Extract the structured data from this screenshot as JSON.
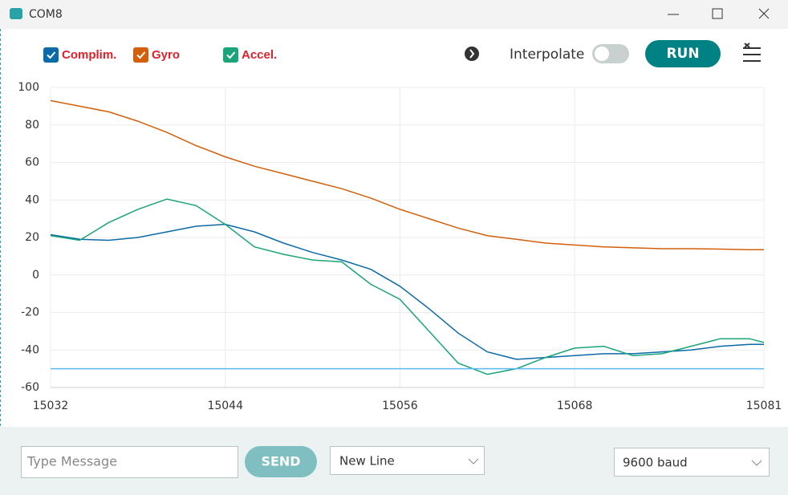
{
  "window": {
    "title": "COM8"
  },
  "controls": {
    "interpolate": "Interpolate",
    "run": "RUN",
    "message_placeholder": "Type Message",
    "send": "SEND",
    "line_ending": "New Line",
    "baud": "9600 baud"
  },
  "chart_data": {
    "type": "line",
    "x": [
      15032,
      15034,
      15036,
      15038,
      15040,
      15042,
      15044,
      15046,
      15048,
      15050,
      15052,
      15054,
      15056,
      15058,
      15060,
      15062,
      15064,
      15066,
      15068,
      15070,
      15072,
      15074,
      15076,
      15078,
      15080,
      15081
    ],
    "series": [
      {
        "name": "Complim.",
        "color": "#0b6aa8",
        "values": [
          21.5,
          19,
          18.5,
          20,
          23,
          26,
          27,
          23,
          17,
          12,
          8,
          3,
          -6,
          -18,
          -31,
          -41,
          -45,
          -44,
          -43,
          -42,
          -42,
          -41,
          -40,
          -38,
          -37,
          -37
        ]
      },
      {
        "name": "Gyro",
        "color": "#d35f0a",
        "values": [
          93,
          90,
          87,
          82,
          76,
          69,
          63,
          58,
          54,
          50,
          46,
          41,
          35,
          30,
          25,
          21,
          19,
          17,
          16,
          15,
          14.5,
          14,
          14,
          13.8,
          13.5,
          13.5
        ]
      },
      {
        "name": "Accel.",
        "color": "#1aa47a",
        "values": [
          21,
          18.5,
          28,
          35,
          40.5,
          37,
          27,
          15,
          11,
          8,
          7,
          -5,
          -13,
          -30,
          -47,
          -53,
          -50,
          -44,
          -39,
          -38,
          -43,
          -42,
          -38,
          -34,
          -34,
          -36
        ]
      },
      {
        "color": "#5ab8ee",
        "values": [
          -50,
          -50,
          -50,
          -50,
          -50,
          -50,
          -50,
          -50,
          -50,
          -50,
          -50,
          -50,
          -50,
          -50,
          -50,
          -50,
          -50,
          -50,
          -50,
          -50,
          -50,
          -50,
          -50,
          -50,
          -50,
          -50
        ]
      }
    ],
    "xlim": [
      15032,
      15081
    ],
    "xticks": [
      15032,
      15044,
      15056,
      15068,
      15081
    ],
    "ylim": [
      -60,
      100
    ],
    "yticks": [
      -60,
      -40,
      -20,
      0,
      20,
      40,
      60,
      80,
      100
    ],
    "grid": true
  }
}
